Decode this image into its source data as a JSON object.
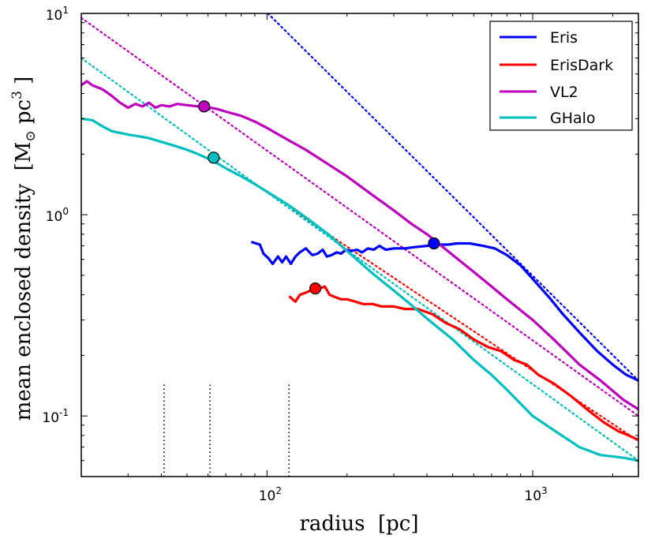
{
  "chart_data": {
    "type": "line",
    "title": "",
    "xlabel": "radius  [pc]",
    "ylabel_main": "mean enclosed density  [M",
    "ylabel_sub": "⊙",
    "ylabel_mid": " pc",
    "ylabel_sup": "3",
    "ylabel_end": " ]",
    "xscale": "log",
    "yscale": "log",
    "xlim": [
      20,
      2500
    ],
    "ylim": [
      0.05,
      10
    ],
    "x_ticks": [
      {
        "value": 100,
        "base": "10",
        "exp": "2"
      },
      {
        "value": 1000,
        "base": "10",
        "exp": "3"
      }
    ],
    "y_ticks": [
      {
        "value": 0.1,
        "base": "10",
        "exp": "-1"
      },
      {
        "value": 1,
        "base": "10",
        "exp": "0"
      },
      {
        "value": 10,
        "base": "10",
        "exp": "1"
      }
    ],
    "legend_position": "top-right",
    "series": [
      {
        "name": "Eris",
        "color": "#0000ff",
        "x": [
          88,
          94,
          97,
          101,
          105,
          110,
          114,
          118,
          123,
          128,
          133,
          140,
          148,
          155,
          162,
          168,
          175,
          183,
          190,
          198,
          208,
          218,
          228,
          240,
          252,
          265,
          280,
          300,
          330,
          360,
          400,
          440,
          480,
          520,
          580,
          650,
          720,
          800,
          900,
          1000,
          1150,
          1300,
          1500,
          1750,
          2000,
          2250,
          2500
        ],
        "y": [
          0.73,
          0.71,
          0.64,
          0.61,
          0.57,
          0.62,
          0.58,
          0.62,
          0.57,
          0.62,
          0.65,
          0.68,
          0.63,
          0.64,
          0.67,
          0.62,
          0.63,
          0.65,
          0.64,
          0.67,
          0.66,
          0.67,
          0.65,
          0.68,
          0.67,
          0.7,
          0.67,
          0.68,
          0.68,
          0.69,
          0.7,
          0.71,
          0.71,
          0.72,
          0.72,
          0.7,
          0.68,
          0.63,
          0.56,
          0.48,
          0.39,
          0.32,
          0.26,
          0.21,
          0.18,
          0.16,
          0.15
        ]
      },
      {
        "name": "ErisDark",
        "color": "#ff0000",
        "x": [
          122,
          128,
          133,
          140,
          146,
          152,
          158,
          165,
          172,
          180,
          190,
          200,
          215,
          230,
          250,
          270,
          300,
          330,
          370,
          420,
          470,
          530,
          600,
          680,
          760,
          850,
          950,
          1050,
          1200,
          1400,
          1600,
          1850,
          2100,
          2300,
          2500
        ],
        "y": [
          0.39,
          0.37,
          0.4,
          0.41,
          0.42,
          0.43,
          0.43,
          0.44,
          0.4,
          0.39,
          0.38,
          0.38,
          0.37,
          0.36,
          0.36,
          0.35,
          0.35,
          0.34,
          0.34,
          0.32,
          0.29,
          0.27,
          0.24,
          0.22,
          0.21,
          0.19,
          0.18,
          0.16,
          0.145,
          0.125,
          0.108,
          0.093,
          0.084,
          0.08,
          0.076
        ]
      },
      {
        "name": "VL2",
        "color": "#bf00bf",
        "x": [
          20,
          21,
          22,
          24,
          26,
          28,
          30,
          32,
          34,
          36,
          38,
          40,
          43,
          46,
          50,
          55,
          60,
          65,
          70,
          80,
          90,
          100,
          120,
          140,
          170,
          200,
          250,
          300,
          350,
          400,
          500,
          600,
          700,
          800,
          1000,
          1200,
          1500,
          1800,
          2200,
          2500
        ],
        "y": [
          4.4,
          4.6,
          4.4,
          4.2,
          3.9,
          3.6,
          3.4,
          3.55,
          3.45,
          3.6,
          3.4,
          3.5,
          3.45,
          3.55,
          3.5,
          3.45,
          3.42,
          3.35,
          3.25,
          3.1,
          2.9,
          2.7,
          2.35,
          2.1,
          1.78,
          1.55,
          1.25,
          1.05,
          0.9,
          0.8,
          0.63,
          0.52,
          0.44,
          0.38,
          0.3,
          0.24,
          0.18,
          0.15,
          0.12,
          0.108
        ]
      },
      {
        "name": "GHalo",
        "color": "#00bfbf",
        "x": [
          20,
          22,
          24,
          26,
          28,
          30,
          33,
          36,
          40,
          45,
          50,
          55,
          60,
          65,
          70,
          80,
          90,
          100,
          120,
          140,
          170,
          200,
          250,
          300,
          350,
          400,
          500,
          600,
          700,
          800,
          1000,
          1200,
          1500,
          1800,
          2200,
          2500
        ],
        "y": [
          3.0,
          2.95,
          2.75,
          2.6,
          2.55,
          2.5,
          2.45,
          2.4,
          2.3,
          2.2,
          2.1,
          2.0,
          1.9,
          1.8,
          1.7,
          1.55,
          1.42,
          1.3,
          1.12,
          0.97,
          0.8,
          0.66,
          0.51,
          0.42,
          0.355,
          0.305,
          0.24,
          0.19,
          0.16,
          0.135,
          0.1,
          0.085,
          0.07,
          0.064,
          0.062,
          0.06
        ]
      }
    ],
    "markers": [
      {
        "series": "Eris",
        "x": 425,
        "y": 0.72
      },
      {
        "series": "ErisDark",
        "x": 152,
        "y": 0.43
      },
      {
        "series": "VL2",
        "x": 58,
        "y": 3.45
      },
      {
        "series": "GHalo",
        "x": 63,
        "y": 1.92
      }
    ],
    "dotted_fits": [
      {
        "series": "Eris",
        "x": [
          95,
          2500
        ],
        "y": [
          10.8,
          0.15
        ]
      },
      {
        "series": "ErisDark",
        "x": [
          125,
          2500
        ],
        "y": [
          1.05,
          0.075
        ]
      },
      {
        "series": "VL2",
        "x": [
          20,
          2500
        ],
        "y": [
          9.5,
          0.1
        ]
      },
      {
        "series": "GHalo",
        "x": [
          20,
          2500
        ],
        "y": [
          6.0,
          0.06
        ]
      }
    ],
    "vertical_markers": {
      "color": "#000000",
      "x": [
        41,
        61,
        121
      ],
      "y_top": 0.145
    }
  }
}
